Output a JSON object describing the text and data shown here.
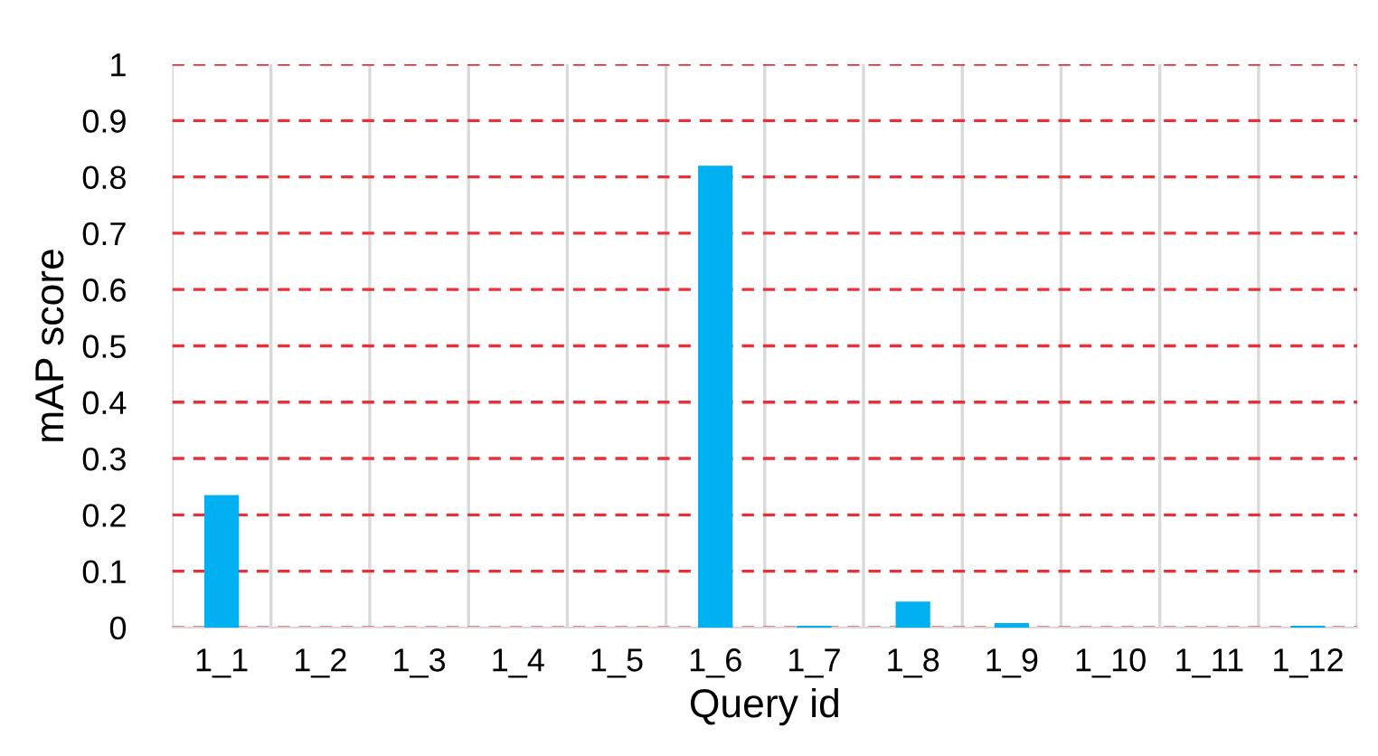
{
  "chart_data": {
    "type": "bar",
    "xlabel": "Query id",
    "ylabel": "mAP score",
    "categories": [
      "1_1",
      "1_2",
      "1_3",
      "1_4",
      "1_5",
      "1_6",
      "1_7",
      "1_8",
      "1_9",
      "1_10",
      "1_11",
      "1_12"
    ],
    "values": [
      0.235,
      0,
      0,
      0,
      0,
      0.82,
      0.003,
      0.046,
      0.008,
      0,
      0,
      0.003
    ],
    "color": "#00b0f0",
    "ylim": [
      0,
      1
    ],
    "yticks": [
      0,
      0.1,
      0.2,
      0.3,
      0.4,
      0.5,
      0.6,
      0.7,
      0.8,
      0.9,
      1
    ],
    "grid": true,
    "legend": false
  }
}
